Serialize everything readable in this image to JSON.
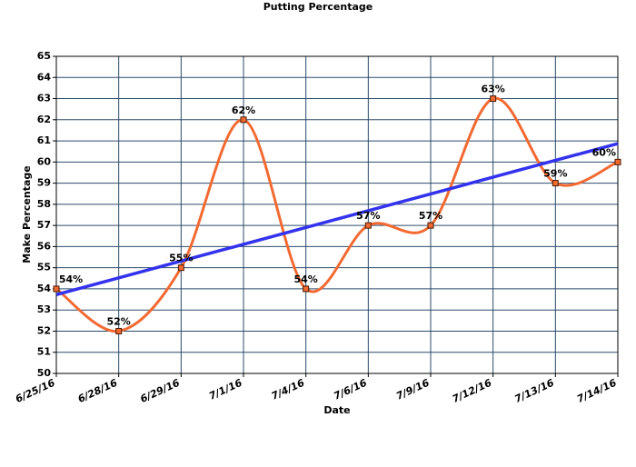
{
  "chart_data": {
    "type": "line",
    "title": "Putting Percentage",
    "x_label": "Date",
    "y_label": "Make Percentage",
    "categories": [
      "6/25/16",
      "6/28/16",
      "6/29/16",
      "7/1/16",
      "7/4/16",
      "7/6/16",
      "7/9/16",
      "7/12/16",
      "7/13/16",
      "7/14/16"
    ],
    "series": [
      {
        "name": "Make Percentage",
        "color": "#f26a32",
        "smooth": true,
        "values": [
          54,
          52,
          55,
          62,
          54,
          57,
          57,
          63,
          59,
          60
        ],
        "value_labels": [
          "54%",
          "52%",
          "55%",
          "62%",
          "54%",
          "57%",
          "57%",
          "63%",
          "59%",
          "60%"
        ]
      }
    ],
    "trendline": {
      "type": "linear",
      "color": "#3333ee"
    },
    "ylim": [
      50,
      65
    ],
    "yticks": [
      50,
      51,
      52,
      53,
      54,
      55,
      56,
      57,
      58,
      59,
      60,
      61,
      62,
      63,
      64,
      65
    ],
    "grid": true
  }
}
